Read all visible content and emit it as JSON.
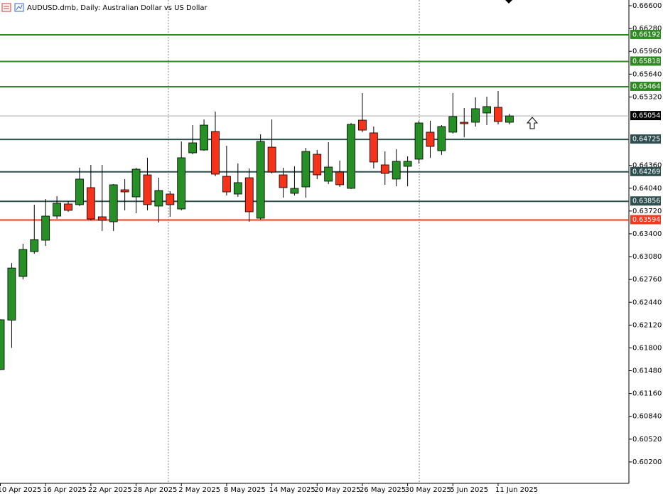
{
  "chart_data": {
    "type": "candlestick",
    "title": "AUDUSD.dmb, Daily:  Australian Dollar vs US Dollar",
    "categories": [
      "10 Apr 2025",
      null,
      null,
      null,
      "16 Apr 2025",
      null,
      null,
      null,
      "22 Apr 2025",
      null,
      null,
      null,
      "28 Apr 2025",
      null,
      null,
      null,
      "2 May 2025",
      null,
      null,
      null,
      "8 May 2025",
      null,
      null,
      null,
      "14 May 2025",
      null,
      null,
      null,
      "20 May 2025",
      null,
      null,
      null,
      "26 May 2025",
      null,
      null,
      null,
      "30 May 2025",
      null,
      null,
      null,
      "5 Jun 2025",
      null,
      null,
      null,
      "11 Jun 2025",
      null
    ],
    "open": [
      0.61496,
      0.6219,
      0.62802,
      0.63151,
      0.6331,
      0.63649,
      0.63819,
      0.63809,
      0.64048,
      0.63639,
      0.63569,
      0.64018,
      0.63918,
      0.64227,
      0.63789,
      0.63958,
      0.63749,
      0.64536,
      0.64576,
      0.64836,
      0.64207,
      0.63958,
      0.64187,
      0.63619,
      0.64616,
      0.64227,
      0.63968,
      0.64058,
      0.64516,
      0.64138,
      0.64267,
      0.64038,
      0.64995,
      0.64816,
      0.64367,
      0.64168,
      0.64347,
      0.64447,
      0.64826,
      0.64566,
      0.64826,
      0.64965,
      0.64965,
      0.65095,
      0.65175,
      0.64965
    ],
    "high": [
      0.622,
      0.6299,
      0.6326,
      0.63809,
      0.63888,
      0.63928,
      0.63858,
      0.64327,
      0.64367,
      0.64367,
      0.64098,
      0.64168,
      0.64327,
      0.64467,
      0.64187,
      0.63998,
      0.64696,
      0.64925,
      0.65005,
      0.65115,
      0.64636,
      0.64387,
      0.64317,
      0.64796,
      0.65005,
      0.64327,
      0.64347,
      0.64606,
      0.64576,
      0.64686,
      0.64427,
      0.64955,
      0.65374,
      0.64905,
      0.64556,
      0.64586,
      0.64487,
      0.64985,
      0.64985,
      0.64925,
      0.65374,
      0.65165,
      0.65314,
      0.65324,
      0.65404,
      0.65085
    ],
    "low": [
      0.6149,
      0.618,
      0.62762,
      0.63121,
      0.6323,
      0.63609,
      0.63709,
      0.63789,
      0.63589,
      0.6344,
      0.6344,
      0.63729,
      0.63689,
      0.63729,
      0.63559,
      0.63639,
      0.63729,
      0.64516,
      0.64566,
      0.64207,
      0.63938,
      0.63918,
      0.6357,
      0.63599,
      0.64247,
      0.63908,
      0.63938,
      0.63908,
      0.64168,
      0.64098,
      0.64058,
      0.64028,
      0.64826,
      0.64317,
      0.64088,
      0.64068,
      0.64068,
      0.64387,
      0.64467,
      0.64507,
      0.64806,
      0.64756,
      0.64905,
      0.64925,
      0.64935,
      0.64935
    ],
    "close": [
      0.62194,
      0.6292,
      0.63181,
      0.6332,
      0.63649,
      0.63829,
      0.63729,
      0.64168,
      0.63609,
      0.63589,
      0.64088,
      0.63988,
      0.64307,
      0.63809,
      0.64008,
      0.63809,
      0.64467,
      0.64676,
      0.64925,
      0.64237,
      0.63988,
      0.64118,
      0.63709,
      0.64696,
      0.64267,
      0.64048,
      0.64038,
      0.64556,
      0.64227,
      0.64337,
      0.64088,
      0.64935,
      0.64855,
      0.64407,
      0.64247,
      0.64417,
      0.64417,
      0.64955,
      0.64626,
      0.64905,
      0.65045,
      0.64945,
      0.65155,
      0.65185,
      0.64975,
      0.65054
    ],
    "up_color": "#268f26",
    "down_color": "#f5331a",
    "ylim": [
      0.599,
      0.6668
    ],
    "yticks": [
      {
        "value": 0.666,
        "label": "0.66600"
      },
      {
        "value": 0.6628,
        "label": "0.66280"
      },
      {
        "value": 0.6596,
        "label": "0.65960"
      },
      {
        "value": 0.6564,
        "label": "0.65640"
      },
      {
        "value": 0.6532,
        "label": "0.65320"
      },
      {
        "value": 0.6436,
        "label": "0.64360"
      },
      {
        "value": 0.6404,
        "label": "0.64040"
      },
      {
        "value": 0.6372,
        "label": "0.63720"
      },
      {
        "value": 0.634,
        "label": "0.63400"
      },
      {
        "value": 0.6308,
        "label": "0.63080"
      },
      {
        "value": 0.6276,
        "label": "0.62760"
      },
      {
        "value": 0.6244,
        "label": "0.62440"
      },
      {
        "value": 0.6212,
        "label": "0.62120"
      },
      {
        "value": 0.618,
        "label": "0.61800"
      },
      {
        "value": 0.6148,
        "label": "0.61480"
      },
      {
        "value": 0.6116,
        "label": "0.61160"
      },
      {
        "value": 0.6084,
        "label": "0.60840"
      },
      {
        "value": 0.6052,
        "label": "0.60520"
      },
      {
        "value": 0.602,
        "label": "0.60200"
      }
    ],
    "levels": [
      {
        "value": 0.66192,
        "color": "#2e8b22"
      },
      {
        "value": 0.65818,
        "color": "#2e8b22"
      },
      {
        "value": 0.65464,
        "color": "#2e8b22"
      },
      {
        "value": 0.65054,
        "color": "#000000"
      },
      {
        "value": 0.64725,
        "color": "#2f4f4f"
      },
      {
        "value": 0.64269,
        "color": "#2f4f4f"
      },
      {
        "value": 0.63856,
        "color": "#2f4f4f"
      },
      {
        "value": 0.63594,
        "color": "#f0391e"
      }
    ]
  }
}
